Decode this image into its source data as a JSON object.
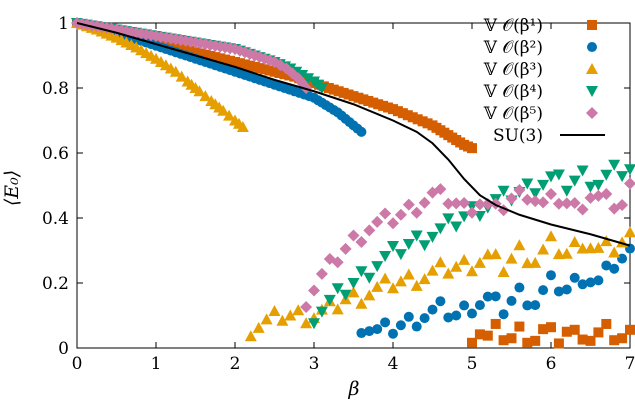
{
  "chart_data": {
    "type": "scatter",
    "xlabel": "β",
    "ylabel": "⟨E₀⟩",
    "xlim": [
      0,
      7
    ],
    "ylim": [
      0,
      1
    ],
    "xticks": [
      "0",
      "1",
      "2",
      "3",
      "4",
      "5",
      "6",
      "7"
    ],
    "yticks": [
      "0",
      "0.2",
      "0.4",
      "0.6",
      "0.8",
      "1"
    ],
    "legend_position": "top-right",
    "grid": false,
    "series": [
      {
        "name": "𝕍 𝒪(β¹)",
        "marker": "square",
        "color": "#d55e00",
        "x": [
          0.0,
          0.25,
          0.5,
          0.75,
          1.0,
          1.25,
          1.5,
          1.75,
          2.0,
          2.25,
          2.5,
          2.75,
          3.0,
          3.25,
          3.5,
          3.75,
          4.0,
          4.25,
          4.5,
          4.6,
          4.7,
          4.8,
          4.9,
          5.0
        ],
        "y": [
          1.0,
          0.985,
          0.97,
          0.955,
          0.94,
          0.925,
          0.91,
          0.895,
          0.88,
          0.865,
          0.85,
          0.835,
          0.815,
          0.795,
          0.775,
          0.755,
          0.735,
          0.71,
          0.685,
          0.67,
          0.655,
          0.64,
          0.625,
          0.615
        ],
        "noise_x": [
          5.0,
          5.1,
          5.2,
          5.3,
          5.4,
          5.5,
          5.6,
          5.7,
          5.8,
          5.9,
          6.0,
          6.1,
          6.2,
          6.3,
          6.4,
          6.5,
          6.6,
          6.7,
          6.8,
          6.9,
          7.0
        ],
        "noise_y": [
          0.04,
          0.05,
          0.03,
          0.05,
          0.04,
          0.03,
          0.05,
          0.04,
          0.03,
          0.05,
          0.04,
          0.03,
          0.05,
          0.04,
          0.05,
          0.03,
          0.04,
          0.05,
          0.04,
          0.03,
          0.04
        ]
      },
      {
        "name": "𝕍 𝒪(β²)",
        "marker": "circle",
        "color": "#0072b2",
        "x": [
          0.0,
          0.25,
          0.5,
          0.75,
          1.0,
          1.25,
          1.5,
          1.75,
          2.0,
          2.25,
          2.5,
          2.75,
          3.0,
          3.1,
          3.2,
          3.3,
          3.4,
          3.5,
          3.6
        ],
        "y": [
          1.0,
          0.985,
          0.97,
          0.95,
          0.93,
          0.91,
          0.89,
          0.87,
          0.85,
          0.83,
          0.81,
          0.79,
          0.77,
          0.755,
          0.74,
          0.725,
          0.705,
          0.685,
          0.665
        ],
        "noise_x": [
          3.6,
          3.8,
          4.0,
          4.2,
          4.4,
          4.6,
          4.8,
          5.0,
          5.2,
          5.4,
          5.6,
          5.8,
          6.0,
          6.2,
          6.4,
          6.6,
          6.8,
          7.0
        ],
        "noise_y": [
          0.07,
          0.05,
          0.06,
          0.08,
          0.1,
          0.12,
          0.1,
          0.13,
          0.15,
          0.12,
          0.17,
          0.14,
          0.2,
          0.18,
          0.22,
          0.2,
          0.26,
          0.29
        ]
      },
      {
        "name": "𝕍 𝒪(β³)",
        "marker": "triangle-up",
        "color": "#e69f00",
        "x": [
          0.0,
          0.25,
          0.5,
          0.75,
          1.0,
          1.25,
          1.4,
          1.55,
          1.7,
          1.85,
          2.0,
          2.1
        ],
        "y": [
          1.0,
          0.98,
          0.955,
          0.925,
          0.89,
          0.85,
          0.82,
          0.79,
          0.76,
          0.73,
          0.7,
          0.68
        ],
        "noise_x": [
          2.2,
          2.4,
          2.6,
          2.8,
          3.0,
          3.2,
          3.4,
          3.6,
          3.8,
          4.0,
          4.2,
          4.4,
          4.6,
          4.8,
          5.0,
          5.2,
          5.4,
          5.6,
          5.8,
          6.0,
          6.2,
          6.4,
          6.6,
          6.8,
          7.0
        ],
        "noise_y": [
          0.06,
          0.08,
          0.1,
          0.1,
          0.1,
          0.12,
          0.15,
          0.16,
          0.18,
          0.2,
          0.21,
          0.22,
          0.24,
          0.25,
          0.26,
          0.28,
          0.25,
          0.3,
          0.27,
          0.32,
          0.29,
          0.33,
          0.3,
          0.31,
          0.34
        ]
      },
      {
        "name": "𝕍 𝒪(β⁴)",
        "marker": "triangle-down",
        "color": "#009e73",
        "x": [
          0.0,
          0.25,
          0.5,
          0.75,
          1.0,
          1.25,
          1.5,
          1.75,
          2.0,
          2.25,
          2.5,
          2.7,
          2.85,
          3.0,
          3.1
        ],
        "y": [
          1.0,
          0.99,
          0.98,
          0.97,
          0.96,
          0.95,
          0.94,
          0.93,
          0.92,
          0.9,
          0.88,
          0.86,
          0.84,
          0.82,
          0.8
        ],
        "noise_x": [
          3.0,
          3.2,
          3.4,
          3.6,
          3.8,
          4.0,
          4.2,
          4.4,
          4.6,
          4.8,
          5.0,
          5.2,
          5.4,
          5.6,
          5.8,
          6.0,
          6.2,
          6.4,
          6.6,
          6.8,
          7.0
        ],
        "noise_y": [
          0.1,
          0.14,
          0.18,
          0.22,
          0.26,
          0.29,
          0.32,
          0.34,
          0.36,
          0.39,
          0.42,
          0.44,
          0.46,
          0.48,
          0.5,
          0.52,
          0.5,
          0.53,
          0.51,
          0.54,
          0.55
        ]
      },
      {
        "name": "𝕍 𝒪(β⁵)",
        "marker": "diamond",
        "color": "#cc79a7",
        "x": [
          0.0,
          0.25,
          0.5,
          0.75,
          1.0,
          1.25,
          1.5,
          1.75,
          2.0,
          2.25,
          2.5,
          2.65,
          2.8,
          2.9
        ],
        "y": [
          1.0,
          0.99,
          0.98,
          0.97,
          0.96,
          0.95,
          0.94,
          0.93,
          0.92,
          0.9,
          0.88,
          0.86,
          0.83,
          0.8
        ],
        "noise_x": [
          2.9,
          3.1,
          3.3,
          3.5,
          3.7,
          3.9,
          4.1,
          4.3,
          4.5,
          4.7,
          4.9,
          5.1,
          5.3,
          5.5,
          5.7,
          5.9,
          6.1,
          6.3,
          6.5,
          6.7,
          6.9,
          7.0
        ],
        "noise_y": [
          0.15,
          0.22,
          0.28,
          0.33,
          0.37,
          0.39,
          0.41,
          0.44,
          0.47,
          0.46,
          0.43,
          0.45,
          0.42,
          0.46,
          0.48,
          0.44,
          0.46,
          0.43,
          0.47,
          0.45,
          0.44,
          0.49
        ]
      },
      {
        "name": "SU(3)",
        "marker": "line",
        "color": "#000000",
        "x": [
          0.0,
          0.5,
          1.0,
          1.5,
          2.0,
          2.5,
          3.0,
          3.5,
          4.0,
          4.3,
          4.5,
          4.7,
          4.9,
          5.1,
          5.3,
          5.6,
          6.0,
          6.5,
          7.0
        ],
        "y": [
          1.0,
          0.97,
          0.935,
          0.9,
          0.865,
          0.825,
          0.79,
          0.75,
          0.7,
          0.665,
          0.63,
          0.58,
          0.52,
          0.47,
          0.44,
          0.41,
          0.38,
          0.35,
          0.315
        ]
      }
    ]
  }
}
